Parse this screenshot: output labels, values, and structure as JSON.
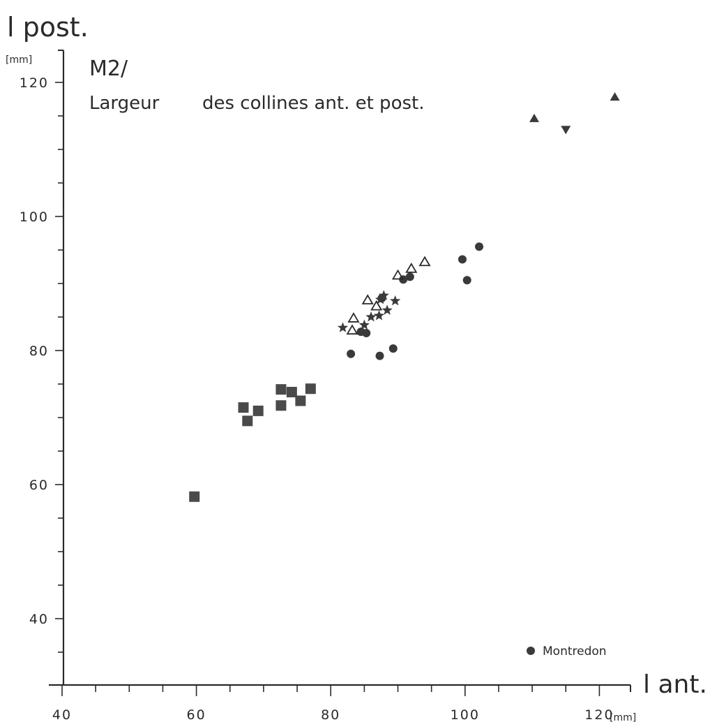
{
  "chart_data": {
    "type": "scatter",
    "y_axis_title": "l post.",
    "y_unit": "[mm]",
    "x_axis_title": "l ant.",
    "x_unit": "[mm]",
    "title": "M2/",
    "subtitle_part1": "Largeur",
    "subtitle_part2": "des collines ant. et post.",
    "xlim": [
      40,
      125
    ],
    "ylim": [
      30,
      125
    ],
    "x_ticks": [
      {
        "value": 40,
        "label": "40"
      },
      {
        "value": 60,
        "label": "60"
      },
      {
        "value": 80,
        "label": "80"
      },
      {
        "value": 100,
        "label": "100"
      },
      {
        "value": 120,
        "label": "120"
      }
    ],
    "y_ticks": [
      {
        "value": 40,
        "label": "40"
      },
      {
        "value": 60,
        "label": "60"
      },
      {
        "value": 80,
        "label": "80"
      },
      {
        "value": 100,
        "label": "100"
      },
      {
        "value": 120,
        "label": "120"
      }
    ],
    "grid": false,
    "legend": [
      {
        "marker": "circle",
        "label": "Montredon"
      }
    ],
    "legend_position": "bottom-right",
    "series": [
      {
        "marker": "square",
        "points": [
          [
            59.7,
            58.2
          ],
          [
            67.0,
            71.5
          ],
          [
            67.6,
            69.5
          ],
          [
            69.2,
            71.0
          ],
          [
            72.6,
            74.2
          ],
          [
            72.6,
            71.8
          ],
          [
            74.2,
            73.8
          ],
          [
            75.5,
            72.5
          ],
          [
            77.0,
            74.3
          ]
        ]
      },
      {
        "marker": "circle",
        "points": [
          [
            83.0,
            79.5
          ],
          [
            84.5,
            82.8
          ],
          [
            85.3,
            82.6
          ],
          [
            87.3,
            79.2
          ],
          [
            89.3,
            80.3
          ],
          [
            87.6,
            87.8
          ],
          [
            90.8,
            90.6
          ],
          [
            91.8,
            91.0
          ],
          [
            99.6,
            93.6
          ],
          [
            100.3,
            90.5
          ],
          [
            102.1,
            95.5
          ]
        ]
      },
      {
        "marker": "star",
        "points": [
          [
            81.8,
            83.4
          ],
          [
            85.0,
            83.8
          ],
          [
            86.0,
            85.0
          ],
          [
            87.2,
            85.2
          ],
          [
            88.4,
            86.0
          ],
          [
            87.4,
            87.6
          ],
          [
            87.9,
            88.2
          ],
          [
            89.6,
            87.4
          ]
        ]
      },
      {
        "marker": "triangle-open",
        "points": [
          [
            83.2,
            83.0
          ],
          [
            83.4,
            84.8
          ],
          [
            85.5,
            87.5
          ],
          [
            86.8,
            86.6
          ],
          [
            90.0,
            91.2
          ],
          [
            92.0,
            92.2
          ],
          [
            94.0,
            93.2
          ]
        ]
      },
      {
        "marker": "triangle-filled",
        "points": [
          [
            110.3,
            114.6
          ],
          [
            122.3,
            117.8
          ]
        ]
      },
      {
        "marker": "triangle-down-filled",
        "points": [
          [
            115.0,
            113.0
          ]
        ]
      }
    ]
  },
  "colors": {
    "ink": "#2a2a2a",
    "marker_fill": "#3a3a3a",
    "square_fill": "#4a4a4a",
    "paper": "#ffffff"
  }
}
